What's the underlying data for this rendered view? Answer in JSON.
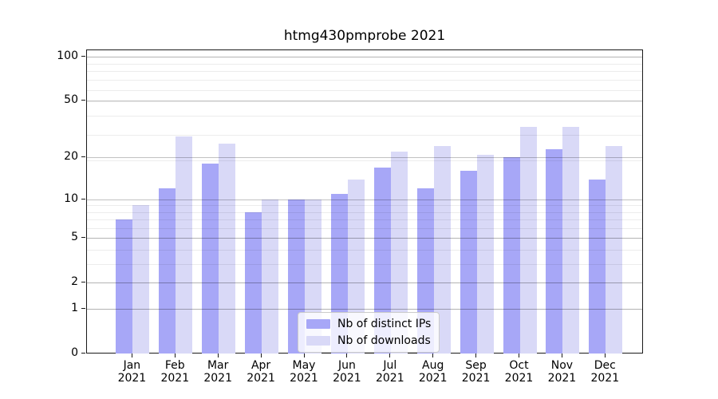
{
  "chart_data": {
    "type": "bar",
    "title": "htmg430pmprobe 2021",
    "x_tick_labels": [
      [
        "Jan",
        "2021"
      ],
      [
        "Feb",
        "2021"
      ],
      [
        "Mar",
        "2021"
      ],
      [
        "Apr",
        "2021"
      ],
      [
        "May",
        "2021"
      ],
      [
        "Jun",
        "2021"
      ],
      [
        "Jul",
        "2021"
      ],
      [
        "Aug",
        "2021"
      ],
      [
        "Sep",
        "2021"
      ],
      [
        "Oct",
        "2021"
      ],
      [
        "Nov",
        "2021"
      ],
      [
        "Dec",
        "2021"
      ]
    ],
    "series": [
      {
        "name": "Nb of distinct IPs",
        "color": "#a7a7f7",
        "values": [
          7,
          12,
          18,
          8,
          10,
          11,
          17,
          12,
          16,
          20,
          23,
          14
        ]
      },
      {
        "name": "Nb of downloads",
        "color": "#d9d9f7",
        "values": [
          9,
          28,
          25,
          10,
          10,
          14,
          22,
          24,
          21,
          33,
          33,
          24
        ]
      }
    ],
    "yscale": "log10(value+1)",
    "ylim": [
      0,
      110
    ],
    "y_major_ticks": [
      0,
      1,
      2,
      5,
      10,
      20,
      50,
      100
    ],
    "y_minor_gridlines": [
      1,
      2,
      3,
      4,
      5,
      6,
      7,
      8,
      9,
      19,
      29,
      39,
      49,
      59,
      69,
      79,
      89,
      99
    ],
    "grid": true,
    "legend_position": "lower center",
    "background_color": "#ffffff",
    "axis_color": "#1a1a1a"
  }
}
